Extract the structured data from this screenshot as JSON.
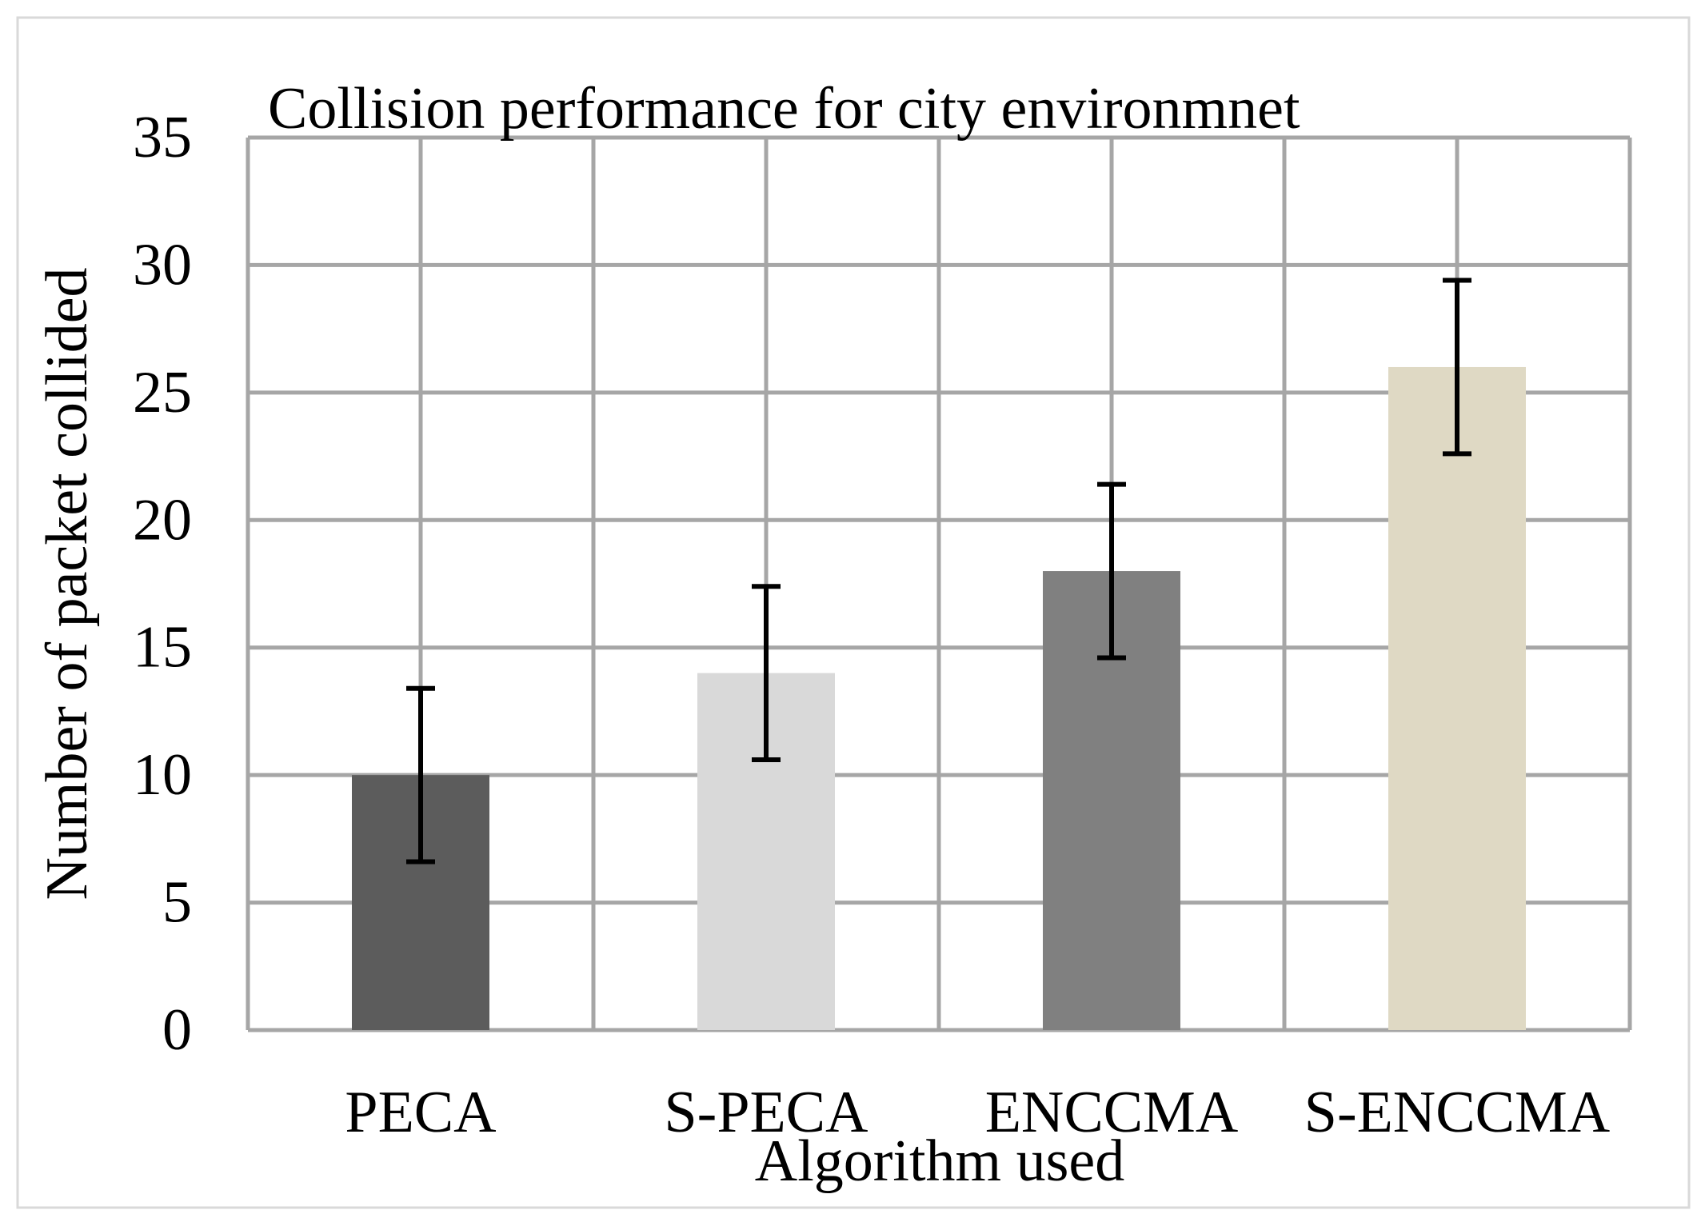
{
  "chart_data": {
    "type": "bar",
    "title": "Collision performance for city environmnet",
    "xlabel": "Algorithm used",
    "ylabel": "Number of packet collided",
    "categories": [
      "PECA",
      "S-PECA",
      "ENCCMA",
      "S-ENCCMA"
    ],
    "values": [
      10,
      14,
      18,
      26
    ],
    "error_bars": [
      {
        "low": 6.6,
        "high": 13.4
      },
      {
        "low": 10.6,
        "high": 17.4
      },
      {
        "low": 14.6,
        "high": 21.4
      },
      {
        "low": 22.6,
        "high": 29.4
      }
    ],
    "bar_colors": [
      "#5c5c5c",
      "#d9d9d9",
      "#808080",
      "#dfd9c4"
    ],
    "ylim": [
      0,
      35
    ],
    "yticks": [
      "0",
      "5",
      "10",
      "15",
      "20",
      "25",
      "30",
      "35"
    ],
    "grid": true,
    "legend": "none"
  },
  "colors": {
    "grid": "#a6a6a6",
    "frame": "#d9d9d9",
    "error_bar": "#000000"
  }
}
